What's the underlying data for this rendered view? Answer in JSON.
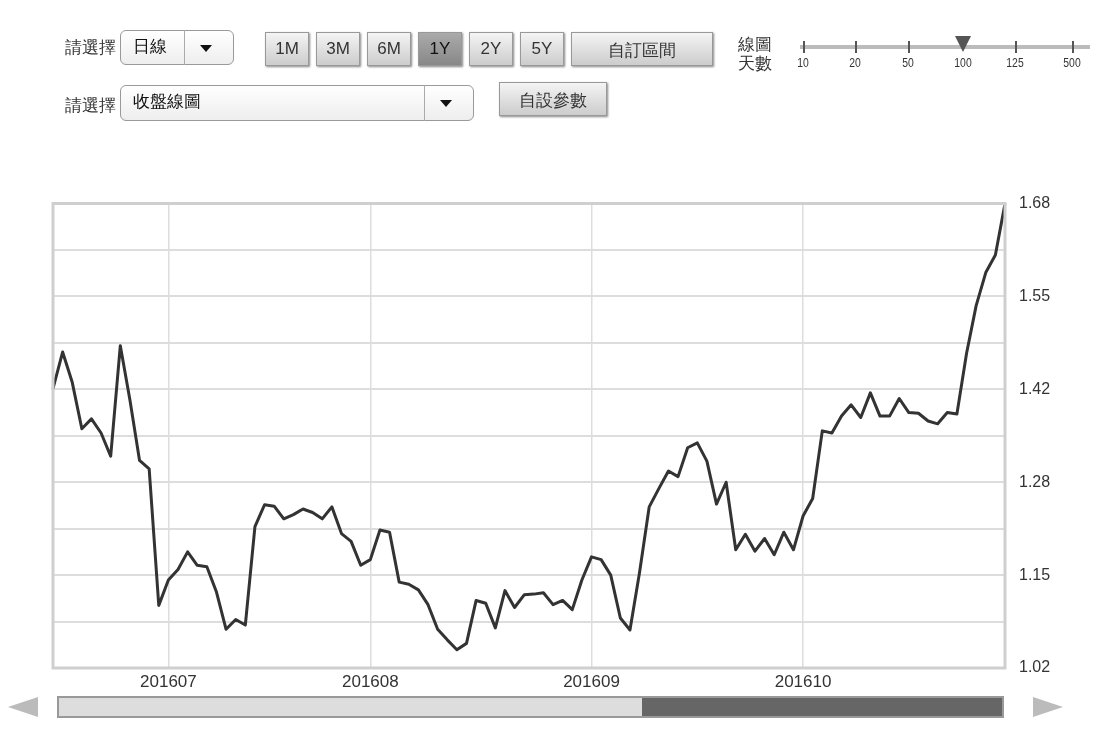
{
  "chart_data": {
    "type": "line",
    "categories": [
      null,
      null,
      null,
      null,
      null,
      null,
      null,
      null,
      null,
      null,
      null,
      null,
      "201607",
      null,
      null,
      null,
      null,
      null,
      null,
      null,
      null,
      null,
      null,
      null,
      null,
      null,
      null,
      null,
      null,
      null,
      null,
      null,
      null,
      "201608",
      null,
      null,
      null,
      null,
      null,
      null,
      null,
      null,
      null,
      null,
      null,
      null,
      null,
      null,
      null,
      null,
      null,
      null,
      null,
      null,
      null,
      null,
      "201609",
      null,
      null,
      null,
      null,
      null,
      null,
      null,
      null,
      null,
      null,
      null,
      null,
      null,
      null,
      null,
      null,
      null,
      null,
      null,
      null,
      null,
      "201610",
      null,
      null,
      null,
      null,
      null,
      null,
      null,
      null,
      null,
      null,
      null,
      null,
      null,
      null,
      null,
      null,
      null,
      null,
      null,
      null,
      null
    ],
    "series": [
      {
        "color": "#333333",
        "values": [
          1.417,
          1.469,
          1.426,
          1.36,
          1.374,
          1.354,
          1.321,
          1.478,
          1.401,
          1.315,
          1.303,
          1.109,
          1.145,
          1.16,
          1.185,
          1.166,
          1.164,
          1.128,
          1.075,
          1.089,
          1.081,
          1.221,
          1.252,
          1.25,
          1.232,
          1.238,
          1.246,
          1.241,
          1.232,
          1.249,
          1.211,
          1.2,
          1.166,
          1.174,
          1.216,
          1.213,
          1.142,
          1.139,
          1.131,
          1.11,
          1.075,
          1.06,
          1.046,
          1.055,
          1.116,
          1.112,
          1.077,
          1.13,
          1.106,
          1.124,
          1.125,
          1.127,
          1.11,
          1.116,
          1.103,
          1.145,
          1.178,
          1.174,
          1.152,
          1.091,
          1.074,
          1.156,
          1.249,
          1.275,
          1.3,
          1.292,
          1.333,
          1.34,
          1.314,
          1.253,
          1.284,
          1.188,
          1.21,
          1.186,
          1.204,
          1.181,
          1.213,
          1.188,
          1.236,
          1.261,
          1.357,
          1.354,
          1.378,
          1.394,
          1.376,
          1.411,
          1.378,
          1.378,
          1.403,
          1.383,
          1.382,
          1.371,
          1.367,
          1.383,
          1.381,
          1.467,
          1.535,
          1.582,
          1.607,
          1.68
        ]
      }
    ],
    "ylim": [
      1.02,
      1.68
    ],
    "yticks": [
      {
        "value": 1.02,
        "label": "1.02"
      },
      {
        "value": 1.086,
        "label": null
      },
      {
        "value": 1.152,
        "label": "1.15"
      },
      {
        "value": 1.218,
        "label": null
      },
      {
        "value": 1.284,
        "label": "1.28"
      },
      {
        "value": 1.35,
        "label": null
      },
      {
        "value": 1.416,
        "label": "1.42"
      },
      {
        "value": 1.482,
        "label": null
      },
      {
        "value": 1.548,
        "label": "1.55"
      },
      {
        "value": 1.614,
        "label": null
      },
      {
        "value": 1.68,
        "label": "1.68"
      }
    ],
    "grid": true,
    "marker": "none",
    "line_style": "solid",
    "annotations": [
      "請選擇",
      "日線",
      "1M",
      "3M",
      "6M",
      "1Y",
      "2Y",
      "5Y",
      "自訂區間",
      "線圖",
      "天數",
      "10",
      "20",
      "50",
      "100",
      "125",
      "500",
      "請選擇",
      "收盤線圖",
      "自設參數"
    ]
  }
}
